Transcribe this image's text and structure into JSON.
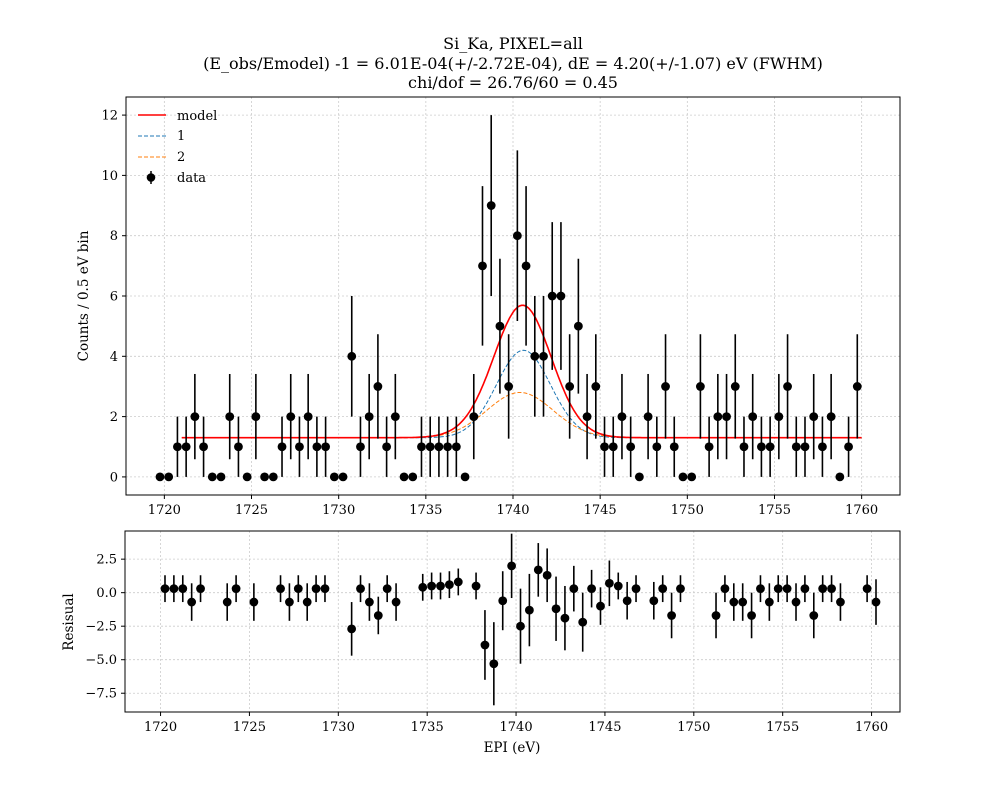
{
  "chart_data": [
    {
      "type": "scatter",
      "panel": "main",
      "title_lines": [
        "Si_Ka, PIXEL=all",
        "(E_obs/Emodel) -1 = 6.01E-04(+/-2.72E-04), dE = 4.20(+/-1.07) eV (FWHM)",
        "chi/dof = 26.76/60 = 0.45"
      ],
      "ylabel": "Counts / 0.5 eV bin",
      "xlabel": "",
      "xlim": [
        1717.8,
        1762.2
      ],
      "ylim": [
        -0.6,
        12.6
      ],
      "xticks": [
        1720,
        1725,
        1730,
        1735,
        1740,
        1745,
        1750,
        1755,
        1760
      ],
      "yticks": [
        0,
        2,
        4,
        6,
        8,
        10,
        12
      ],
      "grid": true,
      "legend_placement": "upper-left",
      "legend": [
        {
          "label": "model",
          "color": "#ff0000",
          "style": "solid"
        },
        {
          "label": "1",
          "color": "#1f77b4",
          "style": "dashed"
        },
        {
          "label": "2",
          "color": "#ff7f0e",
          "style": "dashed"
        },
        {
          "label": "data",
          "color": "#000000",
          "style": "errorbar"
        }
      ],
      "model": {
        "baseline": 1.3,
        "peak1_center": 1740.6,
        "peak1_amp": 2.9,
        "peak1_sigma": 1.55,
        "peak2_center": 1740.4,
        "peak2_amp": 1.5,
        "peak2_sigma": 1.9,
        "x_start": 1721.0,
        "x_end": 1760.0
      },
      "series": [
        {
          "name": "data",
          "x": [
            1719.75,
            1720.25,
            1720.75,
            1721.25,
            1721.75,
            1722.25,
            1722.75,
            1723.25,
            1723.75,
            1724.25,
            1724.75,
            1725.25,
            1725.75,
            1726.25,
            1726.75,
            1727.25,
            1727.75,
            1728.25,
            1728.75,
            1729.25,
            1729.75,
            1730.25,
            1730.75,
            1731.25,
            1731.75,
            1732.25,
            1732.75,
            1733.25,
            1733.75,
            1734.25,
            1734.75,
            1735.25,
            1735.75,
            1736.25,
            1736.75,
            1737.25,
            1737.75,
            1738.25,
            1738.75,
            1739.25,
            1739.75,
            1740.25,
            1740.75,
            1741.25,
            1741.75,
            1742.25,
            1742.75,
            1743.25,
            1743.75,
            1744.25,
            1744.75,
            1745.25,
            1745.75,
            1746.25,
            1746.75,
            1747.25,
            1747.75,
            1748.25,
            1748.75,
            1749.25,
            1749.75,
            1750.25,
            1750.75,
            1751.25,
            1751.75,
            1752.25,
            1752.75,
            1753.25,
            1753.75,
            1754.25,
            1754.75,
            1755.25,
            1755.75,
            1756.25,
            1756.75,
            1757.25,
            1757.75,
            1758.25,
            1758.75,
            1759.25,
            1759.75
          ],
          "y": [
            0,
            0,
            1,
            1,
            2,
            1,
            0,
            0,
            2,
            1,
            0,
            2,
            0,
            0,
            1,
            2,
            1,
            2,
            1,
            1,
            0,
            0,
            4,
            1,
            2,
            3,
            1,
            2,
            0,
            0,
            1,
            1,
            1,
            1,
            1,
            0,
            2,
            7,
            9,
            5,
            3,
            8,
            7,
            4,
            4,
            6,
            6,
            3,
            5,
            2,
            3,
            1,
            1,
            2,
            1,
            0,
            2,
            1,
            3,
            1,
            0,
            0,
            3,
            1,
            2,
            2,
            3,
            1,
            2,
            1,
            1,
            2,
            3,
            1,
            1,
            2,
            1,
            2,
            0,
            1,
            3
          ]
        }
      ]
    },
    {
      "type": "scatter",
      "panel": "residual",
      "ylabel": "Resisual",
      "xlabel": "EPI (eV)",
      "xlim": [
        1718.0,
        1761.6
      ],
      "ylim": [
        -8.9,
        4.6
      ],
      "xticks": [
        1720,
        1725,
        1730,
        1735,
        1740,
        1745,
        1750,
        1755,
        1760
      ],
      "yticks": [
        2.5,
        0.0,
        -2.5,
        -5.0,
        -7.5
      ],
      "ytick_labels": [
        "2.5",
        "0.0",
        "−2.5",
        "−5.0",
        "−7.5"
      ],
      "grid": true,
      "series": [
        {
          "name": "",
          "x": [
            1720.25,
            1720.75,
            1721.25,
            1721.75,
            1722.25,
            1723.75,
            1724.25,
            1725.25,
            1726.75,
            1727.25,
            1727.75,
            1728.25,
            1728.75,
            1729.25,
            1730.75,
            1731.25,
            1731.75,
            1732.25,
            1732.75,
            1733.25,
            1734.75,
            1735.25,
            1735.75,
            1736.25,
            1736.75,
            1737.75,
            1738.25,
            1738.75,
            1739.25,
            1739.75,
            1740.25,
            1740.75,
            1741.25,
            1741.75,
            1742.25,
            1742.75,
            1743.25,
            1743.75,
            1744.25,
            1744.75,
            1745.25,
            1745.75,
            1746.25,
            1746.75,
            1747.75,
            1748.25,
            1748.75,
            1749.25,
            1751.25,
            1751.75,
            1752.25,
            1752.75,
            1753.25,
            1753.75,
            1754.25,
            1754.75,
            1755.25,
            1755.75,
            1756.25,
            1756.75,
            1757.25,
            1757.75,
            1758.25,
            1759.75,
            1760.25
          ],
          "y": [
            0.3,
            0.3,
            0.3,
            -0.7,
            0.3,
            -0.7,
            0.3,
            -0.7,
            0.3,
            -0.7,
            0.3,
            -0.7,
            0.3,
            0.3,
            -2.7,
            0.3,
            -0.7,
            -1.7,
            0.3,
            -0.7,
            0.4,
            0.5,
            0.5,
            0.6,
            0.8,
            0.5,
            -3.9,
            -5.3,
            -0.6,
            2.0,
            -2.5,
            -1.3,
            1.7,
            1.3,
            -1.2,
            -1.9,
            0.3,
            -2.2,
            0.3,
            -1.0,
            0.7,
            0.5,
            -0.6,
            0.3,
            -0.6,
            0.3,
            -1.7,
            0.3,
            -1.7,
            0.3,
            -0.7,
            -0.7,
            -1.7,
            0.3,
            -0.7,
            0.3,
            0.3,
            -0.7,
            0.3,
            -1.7,
            0.3,
            0.3,
            -0.7,
            0.3,
            -0.7
          ],
          "yerr": [
            1.0,
            1.0,
            1.0,
            1.4,
            1.0,
            1.4,
            1.0,
            1.4,
            1.0,
            1.4,
            1.0,
            1.4,
            1.0,
            1.0,
            2.0,
            1.0,
            1.4,
            1.4,
            1.0,
            1.4,
            1.0,
            1.0,
            1.0,
            1.0,
            1.0,
            1.0,
            2.6,
            3.1,
            2.2,
            2.4,
            2.8,
            2.7,
            2.0,
            2.0,
            2.4,
            2.4,
            1.7,
            2.2,
            1.4,
            1.4,
            1.7,
            1.0,
            1.4,
            1.0,
            1.4,
            1.0,
            1.7,
            1.0,
            1.7,
            1.0,
            1.4,
            1.4,
            1.7,
            1.0,
            1.4,
            1.0,
            1.0,
            1.4,
            1.0,
            1.7,
            1.0,
            1.0,
            1.4,
            1.0,
            1.7
          ]
        }
      ]
    }
  ]
}
